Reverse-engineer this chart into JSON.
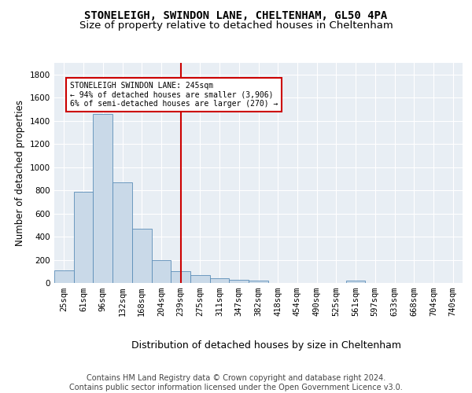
{
  "title1": "STONELEIGH, SWINDON LANE, CHELTENHAM, GL50 4PA",
  "title2": "Size of property relative to detached houses in Cheltenham",
  "xlabel": "Distribution of detached houses by size in Cheltenham",
  "ylabel": "Number of detached properties",
  "footnote": "Contains HM Land Registry data © Crown copyright and database right 2024.\nContains public sector information licensed under the Open Government Licence v3.0.",
  "bin_labels": [
    "25sqm",
    "61sqm",
    "96sqm",
    "132sqm",
    "168sqm",
    "204sqm",
    "239sqm",
    "275sqm",
    "311sqm",
    "347sqm",
    "382sqm",
    "418sqm",
    "454sqm",
    "490sqm",
    "525sqm",
    "561sqm",
    "597sqm",
    "633sqm",
    "668sqm",
    "704sqm",
    "740sqm"
  ],
  "bar_values": [
    110,
    790,
    1460,
    870,
    470,
    200,
    100,
    65,
    40,
    30,
    20,
    0,
    0,
    0,
    0,
    20,
    0,
    0,
    0,
    0,
    0
  ],
  "bar_color": "#c9d9e8",
  "bar_edge_color": "#5b8db8",
  "vline_x_index": 6,
  "vline_color": "#cc0000",
  "annotation_text": "STONELEIGH SWINDON LANE: 245sqm\n← 94% of detached houses are smaller (3,906)\n6% of semi-detached houses are larger (270) →",
  "annotation_box_color": "#cc0000",
  "ylim": [
    0,
    1900
  ],
  "yticks": [
    0,
    200,
    400,
    600,
    800,
    1000,
    1200,
    1400,
    1600,
    1800
  ],
  "background_color": "#e8eef4",
  "grid_color": "#ffffff",
  "title1_fontsize": 10,
  "title2_fontsize": 9.5,
  "ylabel_fontsize": 8.5,
  "xlabel_fontsize": 9,
  "tick_fontsize": 7.5,
  "footnote_fontsize": 7
}
